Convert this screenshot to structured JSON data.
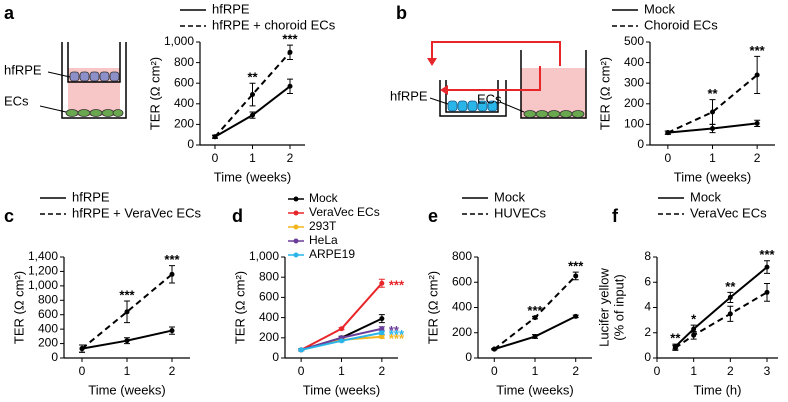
{
  "chart_data": [
    {
      "panel": "a",
      "type": "line",
      "xlabel": "Time (weeks)",
      "ylabel": "TER (Ω cm²)",
      "diagram_labels": [
        "hfRPE",
        "ECs"
      ],
      "x": [
        0,
        1,
        2
      ],
      "xlim": [
        -0.4,
        2.4
      ],
      "xticks": [
        0,
        1,
        2
      ],
      "ylim": [
        0,
        1000
      ],
      "yticks": [
        0,
        200,
        400,
        600,
        800,
        {
          "value": 1000,
          "label": "1,000"
        }
      ],
      "legend": "above",
      "annotation_position": "above",
      "series": [
        {
          "name": "hfRPE",
          "color": "#000000",
          "dashed": false,
          "values": [
            80,
            290,
            570
          ],
          "errors": [
            15,
            30,
            70
          ]
        },
        {
          "name": "hfRPE + choroid ECs",
          "color": "#000000",
          "dashed": true,
          "values": [
            80,
            490,
            900
          ],
          "errors": [
            15,
            110,
            70
          ],
          "annotations": [
            null,
            "**",
            "***"
          ]
        }
      ]
    },
    {
      "panel": "b",
      "type": "line",
      "xlabel": "Time (weeks)",
      "ylabel": "TER (Ω cm²)",
      "diagram_labels": [
        "hfRPE",
        "ECs"
      ],
      "x": [
        0,
        1,
        2
      ],
      "xlim": [
        -0.4,
        2.4
      ],
      "xticks": [
        0,
        1,
        2
      ],
      "ylim": [
        0,
        500
      ],
      "yticks": [
        0,
        100,
        200,
        300,
        400,
        500
      ],
      "legend": "above",
      "annotation_position": "above",
      "series": [
        {
          "name": "Mock",
          "color": "#000000",
          "dashed": false,
          "values": [
            60,
            80,
            105
          ],
          "errors": [
            8,
            20,
            15
          ]
        },
        {
          "name": "Choroid ECs",
          "color": "#000000",
          "dashed": true,
          "values": [
            60,
            160,
            340
          ],
          "errors": [
            8,
            60,
            90
          ],
          "annotations": [
            null,
            "**",
            "***"
          ]
        }
      ]
    },
    {
      "panel": "c",
      "type": "line",
      "xlabel": "Time (weeks)",
      "ylabel": "TER (Ω cm²)",
      "x": [
        0,
        1,
        2
      ],
      "xlim": [
        -0.4,
        2.4
      ],
      "xticks": [
        0,
        1,
        2
      ],
      "ylim": [
        0,
        1400
      ],
      "yticks": [
        0,
        200,
        400,
        600,
        800,
        {
          "value": 1000,
          "label": "1,000"
        },
        {
          "value": 1200,
          "label": "1,200"
        },
        {
          "value": 1400,
          "label": "1,400"
        }
      ],
      "legend": "above",
      "annotation_position": "above",
      "series": [
        {
          "name": "hfRPE",
          "color": "#000000",
          "dashed": false,
          "values": [
            130,
            240,
            380
          ],
          "errors": [
            50,
            40,
            50
          ]
        },
        {
          "name": "hfRPE + VeraVec ECs",
          "color": "#000000",
          "dashed": true,
          "values": [
            130,
            640,
            1160
          ],
          "errors": [
            50,
            150,
            120
          ],
          "annotations": [
            null,
            "***",
            "***"
          ]
        }
      ]
    },
    {
      "panel": "d",
      "type": "line",
      "xlabel": "Time (weeks)",
      "ylabel": "TER (Ω cm²)",
      "x": [
        0,
        1,
        2
      ],
      "xlim": [
        -0.4,
        2.4
      ],
      "xticks": [
        0,
        1,
        2
      ],
      "ylim": [
        0,
        1000
      ],
      "yticks": [
        0,
        200,
        400,
        600,
        800,
        {
          "value": 1000,
          "label": "1,000"
        }
      ],
      "legend": "upper left",
      "annotation_position": "right",
      "series": [
        {
          "name": "Mock",
          "color": "#000000",
          "dashed": false,
          "values": [
            80,
            200,
            390
          ],
          "errors": [
            10,
            15,
            40
          ]
        },
        {
          "name": "VeraVec ECs",
          "color": "#e8262a",
          "dashed": false,
          "values": [
            80,
            290,
            740
          ],
          "errors": [
            10,
            10,
            40
          ],
          "annotations": [
            null,
            null,
            "***"
          ]
        },
        {
          "name": "293T",
          "color": "#f2b51c",
          "dashed": false,
          "values": [
            80,
            180,
            210
          ],
          "errors": [
            10,
            10,
            15
          ],
          "annotations": [
            null,
            null,
            "***"
          ]
        },
        {
          "name": "HeLa",
          "color": "#6a3d9a",
          "dashed": false,
          "values": [
            80,
            200,
            290
          ],
          "errors": [
            10,
            10,
            20
          ],
          "annotations": [
            null,
            null,
            "**"
          ]
        },
        {
          "name": "ARPE19",
          "color": "#29b5e8",
          "dashed": false,
          "values": [
            80,
            170,
            250
          ],
          "errors": [
            10,
            10,
            15
          ],
          "annotations": [
            null,
            null,
            "***"
          ]
        }
      ]
    },
    {
      "panel": "e",
      "type": "line",
      "xlabel": "Time (weeks)",
      "ylabel": "TER (Ω cm²)",
      "x": [
        0,
        1,
        2
      ],
      "xlim": [
        -0.4,
        2.4
      ],
      "xticks": [
        0,
        1,
        2
      ],
      "ylim": [
        0,
        800
      ],
      "yticks": [
        0,
        200,
        400,
        600,
        800
      ],
      "legend": "above",
      "annotation_position": "above",
      "series": [
        {
          "name": "Mock",
          "color": "#000000",
          "dashed": false,
          "values": [
            70,
            170,
            330
          ],
          "errors": [
            5,
            15,
            10
          ]
        },
        {
          "name": "HUVECs",
          "color": "#000000",
          "dashed": true,
          "values": [
            70,
            320,
            650
          ],
          "errors": [
            5,
            10,
            30
          ],
          "annotations": [
            null,
            "***",
            "***"
          ]
        }
      ]
    },
    {
      "panel": "f",
      "type": "line",
      "xlabel": "Time (h)",
      "ylabel": [
        "Lucifer yellow",
        "(% of input)"
      ],
      "x": [
        0.5,
        1,
        2,
        3
      ],
      "xlim": [
        0,
        3.3
      ],
      "xticks": [
        0,
        1,
        2,
        3
      ],
      "ylim": [
        0,
        8
      ],
      "yticks": [
        0,
        2,
        4,
        6,
        8
      ],
      "legend": "above",
      "annotation_position": "above",
      "series": [
        {
          "name": "Mock",
          "color": "#000000",
          "dashed": false,
          "values": [
            0.9,
            2.3,
            4.8,
            7.2
          ],
          "errors": [
            0.2,
            0.3,
            0.4,
            0.5
          ],
          "annotations": [
            "**",
            "*",
            "**",
            "***"
          ]
        },
        {
          "name": "VeraVec ECs",
          "color": "#000000",
          "dashed": true,
          "values": [
            0.8,
            1.8,
            3.5,
            5.2
          ],
          "errors": [
            0.2,
            0.3,
            0.6,
            0.7
          ]
        }
      ]
    }
  ]
}
